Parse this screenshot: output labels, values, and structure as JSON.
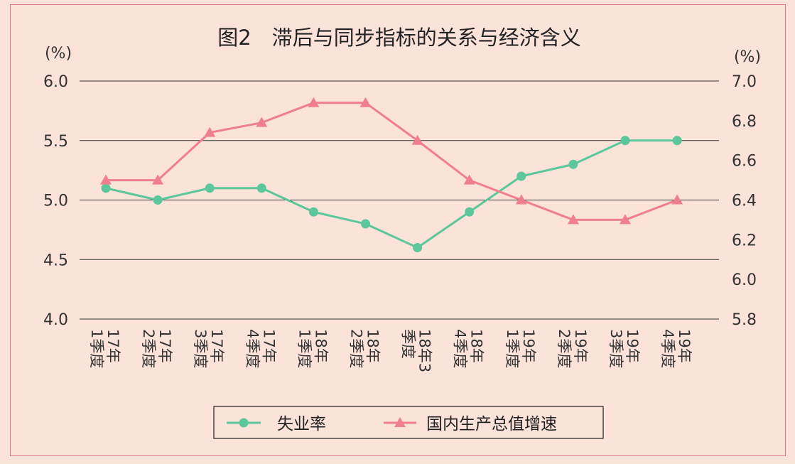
{
  "chart_data": {
    "type": "line",
    "title": "图2　滞后与同步指标的关系与经济含义",
    "left_unit": "(%)",
    "right_unit": "(%)",
    "categories": [
      [
        "17年",
        "1季度"
      ],
      [
        "17年",
        "2季度"
      ],
      [
        "17年",
        "3季度"
      ],
      [
        "17年",
        "4季度"
      ],
      [
        "18年",
        "1季度"
      ],
      [
        "18年",
        "2季度"
      ],
      [
        "18年3",
        "季度"
      ],
      [
        "18年",
        "4季度"
      ],
      [
        "19年",
        "1季度"
      ],
      [
        "19年",
        "2季度"
      ],
      [
        "19年",
        "3季度"
      ],
      [
        "19年",
        "4季度"
      ]
    ],
    "left_axis": {
      "ylim": [
        4.0,
        6.0
      ],
      "ticks": [
        "4.0",
        "4.5",
        "5.0",
        "5.5",
        "6.0"
      ]
    },
    "right_axis": {
      "ylim": [
        5.8,
        7.0
      ],
      "ticks": [
        "5.8",
        "6.0",
        "6.2",
        "6.4",
        "6.6",
        "6.8",
        "7.0"
      ]
    },
    "series": [
      {
        "name": "失业率",
        "axis": "left",
        "marker": "circle",
        "color": "#5cc79a",
        "values": [
          5.1,
          5.0,
          5.1,
          5.1,
          4.9,
          4.8,
          4.6,
          4.9,
          5.2,
          5.3,
          5.5,
          5.5
        ]
      },
      {
        "name": "国内生产总值增速",
        "axis": "right",
        "marker": "triangle",
        "color": "#ef7f8f",
        "values": [
          6.5,
          6.5,
          6.74,
          6.79,
          6.89,
          6.89,
          6.7,
          6.5,
          6.4,
          6.3,
          6.3,
          6.4
        ]
      }
    ],
    "grid": true,
    "legend_position": "bottom-center"
  }
}
